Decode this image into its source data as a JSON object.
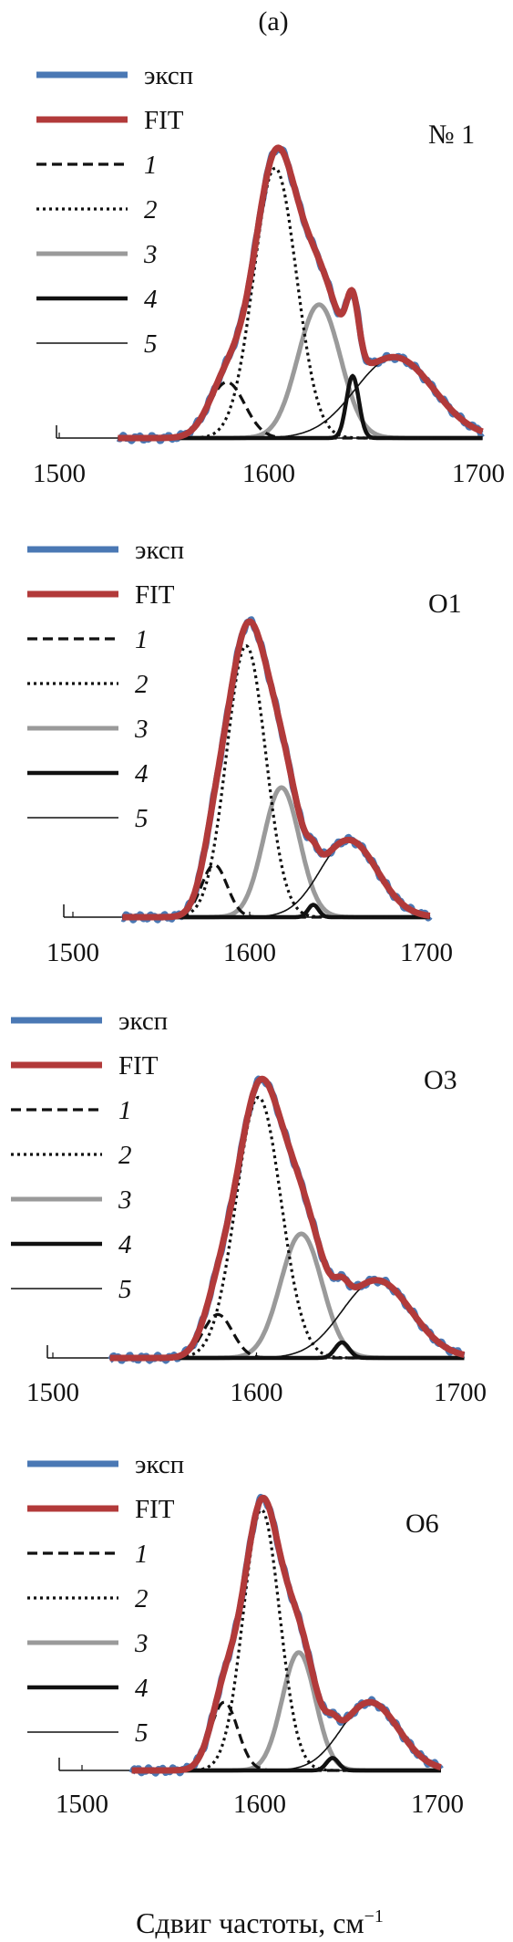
{
  "figure_label": "(a)",
  "xlabel": "Сдвиг частоты, см",
  "xlabel_sup": "−1",
  "legend": [
    {
      "key": "exp",
      "label": "эксп",
      "italic": false,
      "color": "#4a78b4",
      "width": 7,
      "dash": ""
    },
    {
      "key": "fit",
      "label": "FIT",
      "italic": false,
      "color": "#b23a3a",
      "width": 7,
      "dash": ""
    },
    {
      "key": "c1",
      "label": "1",
      "italic": true,
      "color": "#111111",
      "width": 3.2,
      "dash": "11,6"
    },
    {
      "key": "c2",
      "label": "2",
      "italic": true,
      "color": "#111111",
      "width": 3.2,
      "dash": "3,4"
    },
    {
      "key": "c3",
      "label": "3",
      "italic": true,
      "color": "#9a9a9a",
      "width": 5,
      "dash": ""
    },
    {
      "key": "c4",
      "label": "4",
      "italic": true,
      "color": "#111111",
      "width": 4.5,
      "dash": ""
    },
    {
      "key": "c5",
      "label": "5",
      "italic": true,
      "color": "#111111",
      "width": 1.6,
      "dash": ""
    }
  ],
  "chart_data": [
    {
      "type": "line",
      "title": "№ 1",
      "xlim": [
        1500,
        1700
      ],
      "xticks": [
        1500,
        1600,
        1700
      ],
      "grid": false,
      "legend_position": "top-left",
      "peaks": {
        "c1": {
          "center": 1580,
          "amp": 0.18,
          "width": 20
        },
        "c2": {
          "center": 1603,
          "amp": 0.87,
          "width": 24
        },
        "c3": {
          "center": 1624,
          "amp": 0.43,
          "width": 24
        },
        "c4": {
          "center": 1640,
          "amp": 0.2,
          "width": 7
        },
        "c5": {
          "center": 1660,
          "amp": 0.26,
          "width": 44
        }
      }
    },
    {
      "type": "line",
      "title": "О1",
      "xlim": [
        1500,
        1700
      ],
      "xticks": [
        1500,
        1600,
        1700
      ],
      "grid": false,
      "legend_position": "top-left",
      "peaks": {
        "c1": {
          "center": 1580,
          "amp": 0.17,
          "width": 17
        },
        "c2": {
          "center": 1598,
          "amp": 0.88,
          "width": 26
        },
        "c3": {
          "center": 1618,
          "amp": 0.42,
          "width": 24
        },
        "c4": {
          "center": 1636,
          "amp": 0.04,
          "width": 7
        },
        "c5": {
          "center": 1656,
          "amp": 0.25,
          "width": 38
        }
      }
    },
    {
      "type": "line",
      "title": "О3",
      "xlim": [
        1500,
        1700
      ],
      "xticks": [
        1500,
        1600,
        1700
      ],
      "grid": false,
      "legend_position": "top-left",
      "peaks": {
        "c1": {
          "center": 1581,
          "amp": 0.14,
          "width": 17
        },
        "c2": {
          "center": 1601,
          "amp": 0.84,
          "width": 26
        },
        "c3": {
          "center": 1622,
          "amp": 0.4,
          "width": 24
        },
        "c4": {
          "center": 1642,
          "amp": 0.05,
          "width": 8
        },
        "c5": {
          "center": 1659,
          "amp": 0.25,
          "width": 40
        }
      }
    },
    {
      "type": "line",
      "title": "О6",
      "xlim": [
        1500,
        1700
      ],
      "xticks": [
        1500,
        1600,
        1700
      ],
      "grid": false,
      "legend_position": "top-left",
      "peaks": {
        "c1": {
          "center": 1580,
          "amp": 0.22,
          "width": 18
        },
        "c2": {
          "center": 1601,
          "amp": 0.84,
          "width": 24
        },
        "c3": {
          "center": 1622,
          "amp": 0.38,
          "width": 22
        },
        "c4": {
          "center": 1641,
          "amp": 0.04,
          "width": 8
        },
        "c5": {
          "center": 1662,
          "amp": 0.22,
          "width": 38
        }
      }
    }
  ]
}
